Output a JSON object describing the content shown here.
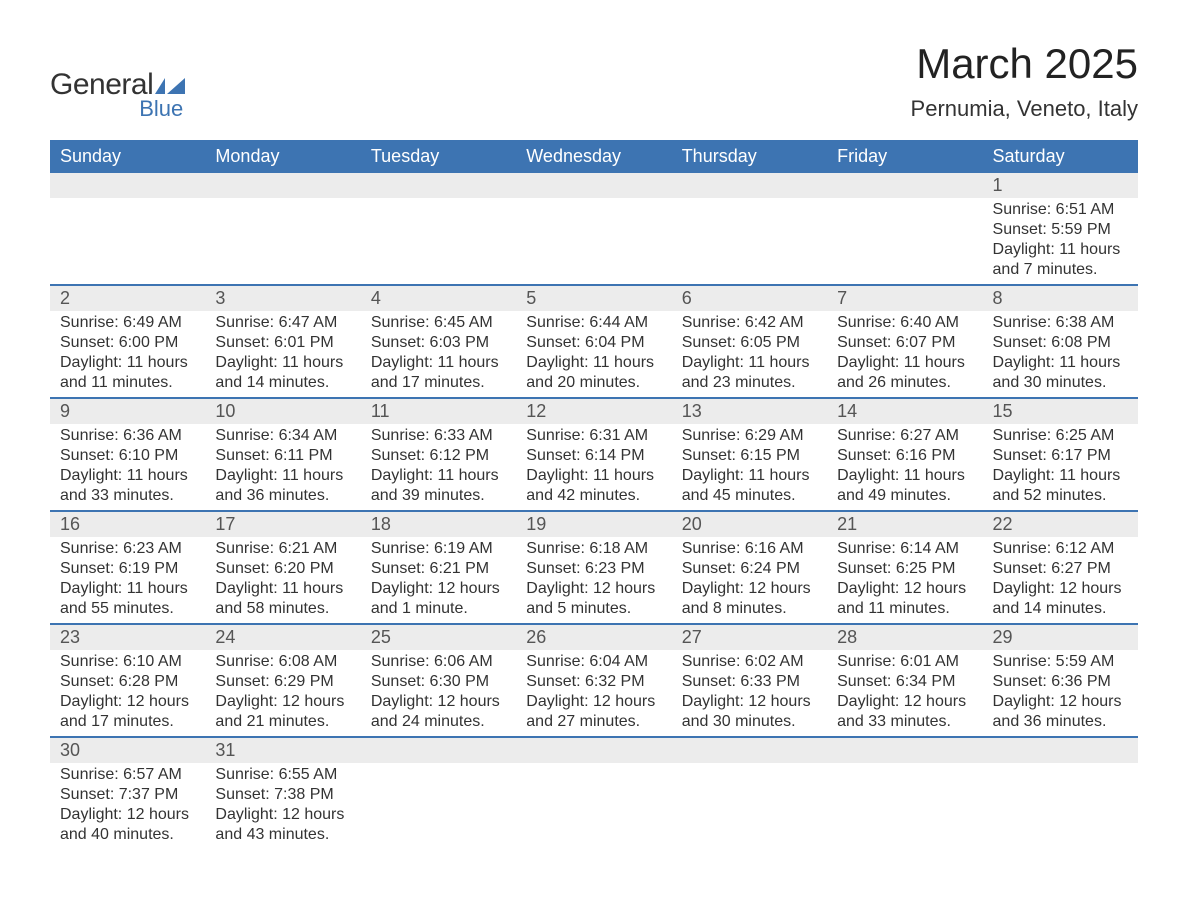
{
  "logo": {
    "line1": "General",
    "line2": "Blue",
    "brand_color": "#3d74b2"
  },
  "title": "March 2025",
  "location": "Pernumia, Veneto, Italy",
  "colors": {
    "header_bg": "#3d74b2",
    "header_text": "#ffffff",
    "daynum_bg": "#ececec",
    "row_divider": "#3d74b2",
    "body_text": "#333333",
    "background": "#ffffff"
  },
  "typography": {
    "title_fontsize": 42,
    "location_fontsize": 22,
    "weekday_fontsize": 18,
    "daynum_fontsize": 18,
    "detail_fontsize": 16
  },
  "calendar": {
    "type": "table",
    "columns": [
      "Sunday",
      "Monday",
      "Tuesday",
      "Wednesday",
      "Thursday",
      "Friday",
      "Saturday"
    ],
    "weeks": [
      [
        null,
        null,
        null,
        null,
        null,
        null,
        {
          "day": "1",
          "sunrise": "Sunrise: 6:51 AM",
          "sunset": "Sunset: 5:59 PM",
          "daylight1": "Daylight: 11 hours",
          "daylight2": "and 7 minutes."
        }
      ],
      [
        {
          "day": "2",
          "sunrise": "Sunrise: 6:49 AM",
          "sunset": "Sunset: 6:00 PM",
          "daylight1": "Daylight: 11 hours",
          "daylight2": "and 11 minutes."
        },
        {
          "day": "3",
          "sunrise": "Sunrise: 6:47 AM",
          "sunset": "Sunset: 6:01 PM",
          "daylight1": "Daylight: 11 hours",
          "daylight2": "and 14 minutes."
        },
        {
          "day": "4",
          "sunrise": "Sunrise: 6:45 AM",
          "sunset": "Sunset: 6:03 PM",
          "daylight1": "Daylight: 11 hours",
          "daylight2": "and 17 minutes."
        },
        {
          "day": "5",
          "sunrise": "Sunrise: 6:44 AM",
          "sunset": "Sunset: 6:04 PM",
          "daylight1": "Daylight: 11 hours",
          "daylight2": "and 20 minutes."
        },
        {
          "day": "6",
          "sunrise": "Sunrise: 6:42 AM",
          "sunset": "Sunset: 6:05 PM",
          "daylight1": "Daylight: 11 hours",
          "daylight2": "and 23 minutes."
        },
        {
          "day": "7",
          "sunrise": "Sunrise: 6:40 AM",
          "sunset": "Sunset: 6:07 PM",
          "daylight1": "Daylight: 11 hours",
          "daylight2": "and 26 minutes."
        },
        {
          "day": "8",
          "sunrise": "Sunrise: 6:38 AM",
          "sunset": "Sunset: 6:08 PM",
          "daylight1": "Daylight: 11 hours",
          "daylight2": "and 30 minutes."
        }
      ],
      [
        {
          "day": "9",
          "sunrise": "Sunrise: 6:36 AM",
          "sunset": "Sunset: 6:10 PM",
          "daylight1": "Daylight: 11 hours",
          "daylight2": "and 33 minutes."
        },
        {
          "day": "10",
          "sunrise": "Sunrise: 6:34 AM",
          "sunset": "Sunset: 6:11 PM",
          "daylight1": "Daylight: 11 hours",
          "daylight2": "and 36 minutes."
        },
        {
          "day": "11",
          "sunrise": "Sunrise: 6:33 AM",
          "sunset": "Sunset: 6:12 PM",
          "daylight1": "Daylight: 11 hours",
          "daylight2": "and 39 minutes."
        },
        {
          "day": "12",
          "sunrise": "Sunrise: 6:31 AM",
          "sunset": "Sunset: 6:14 PM",
          "daylight1": "Daylight: 11 hours",
          "daylight2": "and 42 minutes."
        },
        {
          "day": "13",
          "sunrise": "Sunrise: 6:29 AM",
          "sunset": "Sunset: 6:15 PM",
          "daylight1": "Daylight: 11 hours",
          "daylight2": "and 45 minutes."
        },
        {
          "day": "14",
          "sunrise": "Sunrise: 6:27 AM",
          "sunset": "Sunset: 6:16 PM",
          "daylight1": "Daylight: 11 hours",
          "daylight2": "and 49 minutes."
        },
        {
          "day": "15",
          "sunrise": "Sunrise: 6:25 AM",
          "sunset": "Sunset: 6:17 PM",
          "daylight1": "Daylight: 11 hours",
          "daylight2": "and 52 minutes."
        }
      ],
      [
        {
          "day": "16",
          "sunrise": "Sunrise: 6:23 AM",
          "sunset": "Sunset: 6:19 PM",
          "daylight1": "Daylight: 11 hours",
          "daylight2": "and 55 minutes."
        },
        {
          "day": "17",
          "sunrise": "Sunrise: 6:21 AM",
          "sunset": "Sunset: 6:20 PM",
          "daylight1": "Daylight: 11 hours",
          "daylight2": "and 58 minutes."
        },
        {
          "day": "18",
          "sunrise": "Sunrise: 6:19 AM",
          "sunset": "Sunset: 6:21 PM",
          "daylight1": "Daylight: 12 hours",
          "daylight2": "and 1 minute."
        },
        {
          "day": "19",
          "sunrise": "Sunrise: 6:18 AM",
          "sunset": "Sunset: 6:23 PM",
          "daylight1": "Daylight: 12 hours",
          "daylight2": "and 5 minutes."
        },
        {
          "day": "20",
          "sunrise": "Sunrise: 6:16 AM",
          "sunset": "Sunset: 6:24 PM",
          "daylight1": "Daylight: 12 hours",
          "daylight2": "and 8 minutes."
        },
        {
          "day": "21",
          "sunrise": "Sunrise: 6:14 AM",
          "sunset": "Sunset: 6:25 PM",
          "daylight1": "Daylight: 12 hours",
          "daylight2": "and 11 minutes."
        },
        {
          "day": "22",
          "sunrise": "Sunrise: 6:12 AM",
          "sunset": "Sunset: 6:27 PM",
          "daylight1": "Daylight: 12 hours",
          "daylight2": "and 14 minutes."
        }
      ],
      [
        {
          "day": "23",
          "sunrise": "Sunrise: 6:10 AM",
          "sunset": "Sunset: 6:28 PM",
          "daylight1": "Daylight: 12 hours",
          "daylight2": "and 17 minutes."
        },
        {
          "day": "24",
          "sunrise": "Sunrise: 6:08 AM",
          "sunset": "Sunset: 6:29 PM",
          "daylight1": "Daylight: 12 hours",
          "daylight2": "and 21 minutes."
        },
        {
          "day": "25",
          "sunrise": "Sunrise: 6:06 AM",
          "sunset": "Sunset: 6:30 PM",
          "daylight1": "Daylight: 12 hours",
          "daylight2": "and 24 minutes."
        },
        {
          "day": "26",
          "sunrise": "Sunrise: 6:04 AM",
          "sunset": "Sunset: 6:32 PM",
          "daylight1": "Daylight: 12 hours",
          "daylight2": "and 27 minutes."
        },
        {
          "day": "27",
          "sunrise": "Sunrise: 6:02 AM",
          "sunset": "Sunset: 6:33 PM",
          "daylight1": "Daylight: 12 hours",
          "daylight2": "and 30 minutes."
        },
        {
          "day": "28",
          "sunrise": "Sunrise: 6:01 AM",
          "sunset": "Sunset: 6:34 PM",
          "daylight1": "Daylight: 12 hours",
          "daylight2": "and 33 minutes."
        },
        {
          "day": "29",
          "sunrise": "Sunrise: 5:59 AM",
          "sunset": "Sunset: 6:36 PM",
          "daylight1": "Daylight: 12 hours",
          "daylight2": "and 36 minutes."
        }
      ],
      [
        {
          "day": "30",
          "sunrise": "Sunrise: 6:57 AM",
          "sunset": "Sunset: 7:37 PM",
          "daylight1": "Daylight: 12 hours",
          "daylight2": "and 40 minutes."
        },
        {
          "day": "31",
          "sunrise": "Sunrise: 6:55 AM",
          "sunset": "Sunset: 7:38 PM",
          "daylight1": "Daylight: 12 hours",
          "daylight2": "and 43 minutes."
        },
        null,
        null,
        null,
        null,
        null
      ]
    ]
  }
}
